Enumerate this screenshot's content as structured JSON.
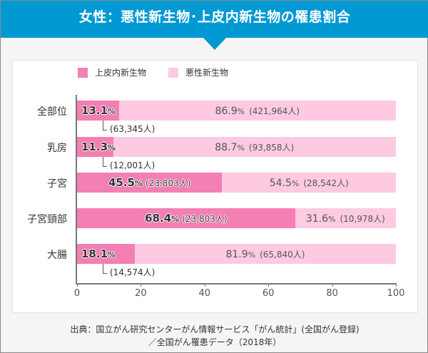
{
  "header": {
    "title": "女性：悪性新生物･上皮内新生物の罹患割合"
  },
  "chart_data": {
    "type": "bar",
    "stacked": true,
    "orientation": "horizontal",
    "categories": [
      "全部位",
      "乳房",
      "子宮",
      "子宮頸部",
      "大腸"
    ],
    "series": [
      {
        "name": "上皮内新生物",
        "color": "#f47fb3",
        "values": [
          13.1,
          11.3,
          45.5,
          68.4,
          18.1
        ],
        "counts": [
          "63,345人",
          "12,001人",
          "23,803人",
          "23,803人",
          "14,574人"
        ]
      },
      {
        "name": "悪性新生物",
        "color": "#fdcae2",
        "values": [
          86.9,
          88.7,
          54.5,
          31.6,
          81.9
        ],
        "counts": [
          "421,964人",
          "93,858人",
          "28,542人",
          "10,978人",
          "65,840人"
        ]
      }
    ],
    "xlim": [
      0,
      100
    ],
    "xticks": [
      "0",
      "20",
      "40",
      "60",
      "80",
      "100"
    ],
    "pct_suffix": "%"
  },
  "source": {
    "line1": "出典：国立がん研究センターがん情報サービス「がん統計」(全国がん登録)",
    "line2": "／全国がん罹患データ（2018年）"
  }
}
